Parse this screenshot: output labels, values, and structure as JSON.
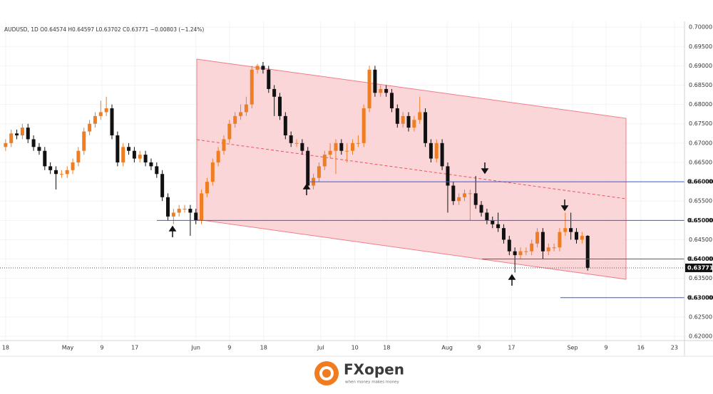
{
  "chart_data": {
    "type": "candlestick",
    "header": "AUDUSD, 1D  O0.64574  H0.64597  L0.63702  C0.63771  −0.00803 (−1.24%)",
    "up_color": "#ef7d22",
    "down_color": "#111111",
    "open": [
      0.669,
      0.67,
      0.6725,
      0.672,
      0.674,
      0.671,
      0.669,
      0.668,
      0.664,
      0.663,
      0.662,
      0.662,
      0.663,
      0.665,
      0.668,
      0.673,
      0.675,
      0.677,
      0.678,
      0.679,
      0.672,
      0.665,
      0.669,
      0.668,
      0.666,
      0.667,
      0.665,
      0.664,
      0.662,
      0.656,
      0.651,
      0.652,
      0.653,
      0.653,
      0.652,
      0.65,
      0.657,
      0.66,
      0.665,
      0.668,
      0.671,
      0.675,
      0.677,
      0.678,
      0.68,
      0.689,
      0.69,
      0.689,
      0.684,
      0.682,
      0.677,
      0.672,
      0.67,
      0.67,
      0.668,
      0.659,
      0.661,
      0.664,
      0.667,
      0.668,
      0.67,
      0.668,
      0.668,
      0.67,
      0.67,
      0.679,
      0.689,
      0.683,
      0.684,
      0.683,
      0.679,
      0.675,
      0.677,
      0.674,
      0.676,
      0.678,
      0.67,
      0.666,
      0.67,
      0.664,
      0.659,
      0.655,
      0.656,
      0.657,
      0.657,
      0.654,
      0.652,
      0.65,
      0.649,
      0.648,
      0.645,
      0.642,
      0.641,
      0.642,
      0.642,
      0.644,
      0.647,
      0.642,
      0.643,
      0.643,
      0.647,
      0.648,
      0.647,
      0.645,
      0.646
    ],
    "high": [
      0.671,
      0.6735,
      0.6735,
      0.675,
      0.675,
      0.672,
      0.67,
      0.669,
      0.665,
      0.664,
      0.663,
      0.664,
      0.666,
      0.669,
      0.674,
      0.676,
      0.678,
      0.681,
      0.682,
      0.68,
      0.673,
      0.67,
      0.67,
      0.669,
      0.668,
      0.668,
      0.666,
      0.665,
      0.663,
      0.657,
      0.653,
      0.654,
      0.654,
      0.654,
      0.653,
      0.658,
      0.661,
      0.666,
      0.669,
      0.672,
      0.676,
      0.678,
      0.68,
      0.682,
      0.69,
      0.6905,
      0.691,
      0.69,
      0.685,
      0.683,
      0.678,
      0.673,
      0.671,
      0.671,
      0.669,
      0.662,
      0.665,
      0.668,
      0.67,
      0.671,
      0.671,
      0.67,
      0.671,
      0.672,
      0.68,
      0.69,
      0.69,
      0.685,
      0.685,
      0.684,
      0.68,
      0.678,
      0.678,
      0.677,
      0.682,
      0.679,
      0.671,
      0.671,
      0.671,
      0.665,
      0.66,
      0.657,
      0.658,
      0.658,
      0.6615,
      0.655,
      0.653,
      0.651,
      0.652,
      0.649,
      0.646,
      0.643,
      0.643,
      0.643,
      0.645,
      0.648,
      0.648,
      0.644,
      0.644,
      0.648,
      0.652,
      0.652,
      0.648,
      0.647,
      0.6462
    ],
    "low": [
      0.668,
      0.669,
      0.671,
      0.671,
      0.67,
      0.668,
      0.667,
      0.663,
      0.662,
      0.658,
      0.661,
      0.661,
      0.662,
      0.664,
      0.667,
      0.672,
      0.674,
      0.676,
      0.677,
      0.671,
      0.664,
      0.664,
      0.667,
      0.665,
      0.665,
      0.664,
      0.663,
      0.661,
      0.655,
      0.65,
      0.649,
      0.651,
      0.652,
      0.646,
      0.649,
      0.649,
      0.656,
      0.659,
      0.664,
      0.667,
      0.67,
      0.674,
      0.676,
      0.677,
      0.679,
      0.688,
      0.688,
      0.683,
      0.677,
      0.676,
      0.671,
      0.669,
      0.669,
      0.667,
      0.658,
      0.658,
      0.66,
      0.663,
      0.666,
      0.662,
      0.667,
      0.665,
      0.667,
      0.669,
      0.669,
      0.678,
      0.682,
      0.682,
      0.682,
      0.678,
      0.674,
      0.674,
      0.673,
      0.673,
      0.675,
      0.669,
      0.665,
      0.665,
      0.663,
      0.652,
      0.654,
      0.654,
      0.655,
      0.65,
      0.653,
      0.651,
      0.649,
      0.648,
      0.647,
      0.644,
      0.641,
      0.6365,
      0.64,
      0.641,
      0.641,
      0.643,
      0.64,
      0.641,
      0.642,
      0.642,
      0.646,
      0.645,
      0.644,
      0.644,
      0.637
    ],
    "close": [
      0.67,
      0.6725,
      0.672,
      0.674,
      0.671,
      0.669,
      0.668,
      0.664,
      0.663,
      0.662,
      0.662,
      0.663,
      0.665,
      0.668,
      0.673,
      0.675,
      0.677,
      0.678,
      0.679,
      0.672,
      0.665,
      0.669,
      0.668,
      0.666,
      0.667,
      0.665,
      0.664,
      0.662,
      0.656,
      0.651,
      0.652,
      0.653,
      0.653,
      0.652,
      0.65,
      0.657,
      0.66,
      0.665,
      0.668,
      0.671,
      0.675,
      0.677,
      0.678,
      0.68,
      0.689,
      0.69,
      0.689,
      0.684,
      0.682,
      0.677,
      0.672,
      0.67,
      0.67,
      0.668,
      0.659,
      0.661,
      0.664,
      0.667,
      0.668,
      0.67,
      0.668,
      0.668,
      0.67,
      0.67,
      0.679,
      0.689,
      0.683,
      0.684,
      0.683,
      0.679,
      0.675,
      0.677,
      0.674,
      0.676,
      0.678,
      0.67,
      0.666,
      0.67,
      0.664,
      0.659,
      0.655,
      0.656,
      0.657,
      0.657,
      0.654,
      0.652,
      0.65,
      0.649,
      0.648,
      0.645,
      0.642,
      0.641,
      0.642,
      0.642,
      0.644,
      0.647,
      0.642,
      0.643,
      0.643,
      0.647,
      0.648,
      0.647,
      0.645,
      0.646,
      0.6377
    ],
    "xlim": [
      -1,
      121.3
    ],
    "xticks": [
      {
        "value": 0,
        "label": "18"
      },
      {
        "value": 11.1,
        "label": "May"
      },
      {
        "value": 17.2,
        "label": "9"
      },
      {
        "value": 23.1,
        "label": "17"
      },
      {
        "value": 34,
        "label": "Jun"
      },
      {
        "value": 40,
        "label": "9"
      },
      {
        "value": 46.1,
        "label": "18"
      },
      {
        "value": 56.3,
        "label": "Jul"
      },
      {
        "value": 62.4,
        "label": "10"
      },
      {
        "value": 68.1,
        "label": "18"
      },
      {
        "value": 78.9,
        "label": "Aug"
      },
      {
        "value": 84.6,
        "label": "9"
      },
      {
        "value": 90.4,
        "label": "17"
      },
      {
        "value": 101.3,
        "label": "Sep"
      },
      {
        "value": 107.3,
        "label": "9"
      },
      {
        "value": 113.5,
        "label": "16"
      },
      {
        "value": 119.5,
        "label": "23"
      }
    ],
    "ylim": [
      0.6189,
      0.7015
    ],
    "yticks": [
      {
        "value": 0.62,
        "label": "0.62000"
      },
      {
        "value": 0.625,
        "label": "0.62500"
      },
      {
        "value": 0.63,
        "label": "0.63000"
      },
      {
        "value": 0.635,
        "label": "0.63500"
      },
      {
        "value": 0.64,
        "label": "0.64000"
      },
      {
        "value": 0.645,
        "label": "0.64500"
      },
      {
        "value": 0.65,
        "label": "0.65000"
      },
      {
        "value": 0.655,
        "label": "0.65500"
      },
      {
        "value": 0.66,
        "label": "0.66000"
      },
      {
        "value": 0.665,
        "label": "0.66500"
      },
      {
        "value": 0.67,
        "label": "0.67000"
      },
      {
        "value": 0.675,
        "label": "0.67500"
      },
      {
        "value": 0.68,
        "label": "0.68000"
      },
      {
        "value": 0.685,
        "label": "0.68500"
      },
      {
        "value": 0.69,
        "label": "0.69000"
      },
      {
        "value": 0.695,
        "label": "0.69500"
      },
      {
        "value": 0.7,
        "label": "0.70000"
      }
    ],
    "levels": [
      {
        "value": 0.66,
        "label": "0.66000"
      },
      {
        "value": 0.65,
        "label": "0.65000"
      },
      {
        "value": 0.64,
        "label": "0.64000"
      },
      {
        "value": 0.63,
        "label": "0.63000"
      }
    ],
    "level_color": "#2f5bea",
    "last_price": {
      "value": 0.63771,
      "label": "0.63771"
    },
    "footer": {
      "brand": "FXopen",
      "tagline": "when money makes money"
    }
  }
}
